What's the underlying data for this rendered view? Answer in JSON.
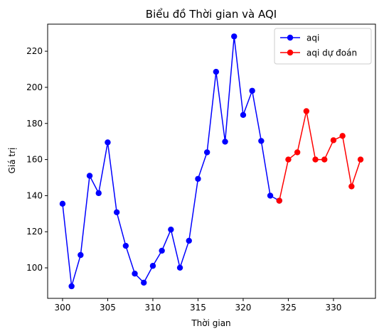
{
  "chart_data": {
    "type": "line",
    "title": "Biểu đồ Thời gian và AQI",
    "xlabel": "Thời gian",
    "ylabel": "Giá trị",
    "xlim": [
      298.35,
      334.65
    ],
    "ylim": [
      83.1,
      235.0
    ],
    "xticks": [
      300,
      305,
      310,
      315,
      320,
      325,
      330
    ],
    "yticks": [
      100,
      120,
      140,
      160,
      180,
      200,
      220
    ],
    "grid": false,
    "legend_position": "top-right",
    "series": [
      {
        "name": "aqi",
        "color": "#0000ff",
        "marker": "circle",
        "x": [
          300,
          301,
          302,
          303,
          304,
          305,
          306,
          307,
          308,
          309,
          310,
          311,
          312,
          313,
          314,
          315,
          316,
          317,
          318,
          319,
          320,
          321,
          322,
          323,
          324
        ],
        "y": [
          135.5,
          89.8,
          107.1,
          151.0,
          141.4,
          169.5,
          130.8,
          112.2,
          96.8,
          91.8,
          101.1,
          109.5,
          121.2,
          100.1,
          115.0,
          149.3,
          164.0,
          208.6,
          169.9,
          228.2,
          184.7,
          198.1,
          170.3,
          140.0,
          137.2
        ]
      },
      {
        "name": "aqi dự đoán",
        "color": "#ff0000",
        "marker": "circle",
        "x": [
          324,
          325,
          326,
          327,
          328,
          329,
          330,
          331,
          332,
          333
        ],
        "y": [
          137.2,
          160.0,
          164.0,
          186.8,
          160.0,
          160.0,
          170.7,
          173.1,
          145.1,
          160.0
        ]
      }
    ]
  }
}
